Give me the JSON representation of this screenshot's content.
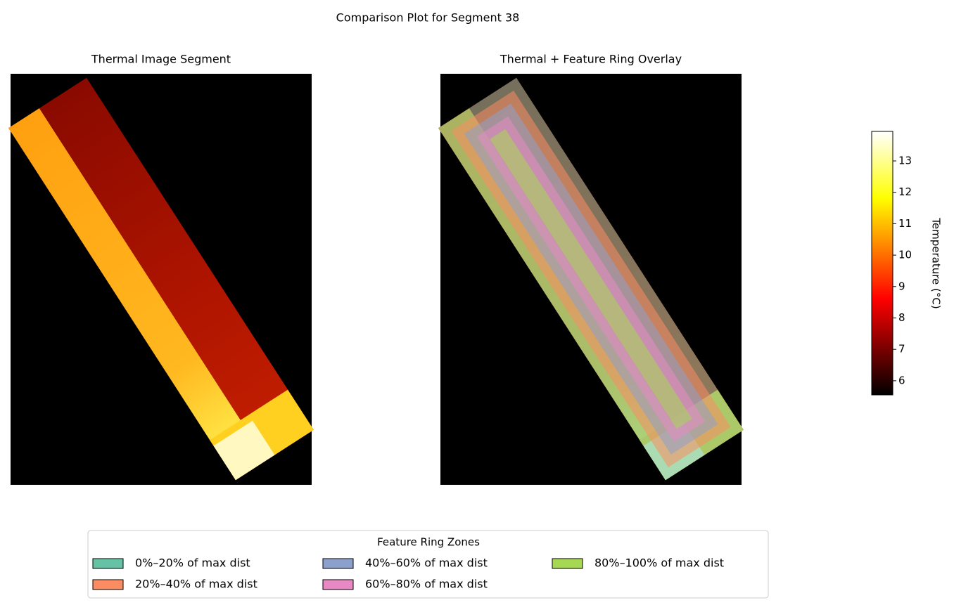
{
  "chart_data": {
    "type": "heatmap",
    "title": "Comparison Plot for Segment 38",
    "panels": [
      {
        "title": "Thermal Image Segment"
      },
      {
        "title": "Thermal + Feature Ring Overlay"
      }
    ],
    "colormap": "hot",
    "colorbar_label": "Temperature (°C)",
    "clim": [
      5.55,
      13.94
    ],
    "cticks": [
      6,
      7,
      8,
      9,
      10,
      11,
      12,
      13
    ],
    "legend_title": "Feature Ring Zones",
    "legend_columns": 3,
    "series": [
      {
        "name": "0%–20% of max dist",
        "color": "#66c2a5"
      },
      {
        "name": "20%–40% of max dist",
        "color": "#fc8d62"
      },
      {
        "name": "40%–60% of max dist",
        "color": "#8da0cb"
      },
      {
        "name": "60%–80% of max dist",
        "color": "#e78ac3"
      },
      {
        "name": "80%–100% of max dist",
        "color": "#a6d854"
      }
    ]
  }
}
